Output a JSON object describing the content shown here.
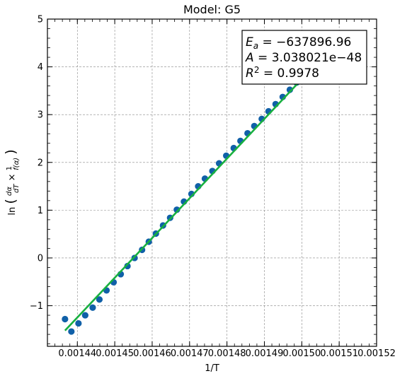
{
  "chart_data": {
    "type": "scatter",
    "title": "Model: G5",
    "xlabel": "1/T",
    "ylabel": "ln(dα/dT × 1/f(α))",
    "xlim": [
      0.001432,
      0.00152
    ],
    "ylim": [
      -1.85,
      5
    ],
    "x_ticks": [
      0.00144,
      0.00145,
      0.00146,
      0.00147,
      0.00148,
      0.00149,
      0.0015,
      0.00151,
      0.00152
    ],
    "x_tick_labels": [
      "0.00144",
      "0.00145",
      "0.00146",
      "0.00147",
      "0.00148",
      "0.00149",
      "0.00150",
      "0.00151",
      "0.00152"
    ],
    "y_ticks": [
      -1,
      0,
      1,
      2,
      3,
      4,
      5
    ],
    "y_tick_labels": [
      "−1",
      "0",
      "1",
      "2",
      "3",
      "4",
      "5"
    ],
    "grid": true,
    "series": [
      {
        "kind": "points",
        "color": "#1060a8",
        "x": [
          0.0014367,
          0.0014384,
          0.0014403,
          0.0014421,
          0.0014441,
          0.0014459,
          0.0014478,
          0.0014497,
          0.0014516,
          0.0014534,
          0.0014553,
          0.0014573,
          0.0014591,
          0.001461,
          0.0014629,
          0.0014648,
          0.0014666,
          0.0014685,
          0.0014705,
          0.0014723,
          0.0014741,
          0.0014761,
          0.0014779,
          0.0014798,
          0.0014818,
          0.0014836,
          0.0014855,
          0.0014873,
          0.0014893,
          0.0014911,
          0.001493,
          0.0014949,
          0.0014968,
          0.0014986,
          0.0015006,
          0.0015024,
          0.0015043
        ],
        "y": [
          -1.28,
          -1.54,
          -1.37,
          -1.2,
          -1.04,
          -0.87,
          -0.68,
          -0.51,
          -0.34,
          -0.17,
          0.0,
          0.17,
          0.34,
          0.51,
          0.68,
          0.84,
          1.01,
          1.18,
          1.34,
          1.5,
          1.66,
          1.82,
          1.98,
          2.14,
          2.3,
          2.45,
          2.61,
          2.76,
          2.91,
          3.07,
          3.22,
          3.37,
          3.52,
          3.67,
          3.82,
          3.96,
          4.11
        ]
      },
      {
        "kind": "fit-line",
        "color": "#18b040",
        "x": [
          0.0014367,
          0.0015043
        ],
        "y": [
          -1.52,
          4.1
        ]
      }
    ],
    "annotation": {
      "lines": [
        "E_a = −637896.96",
        "A = 3.038021e−48",
        "R^2 = 0.9978"
      ],
      "position": "top-right"
    }
  }
}
